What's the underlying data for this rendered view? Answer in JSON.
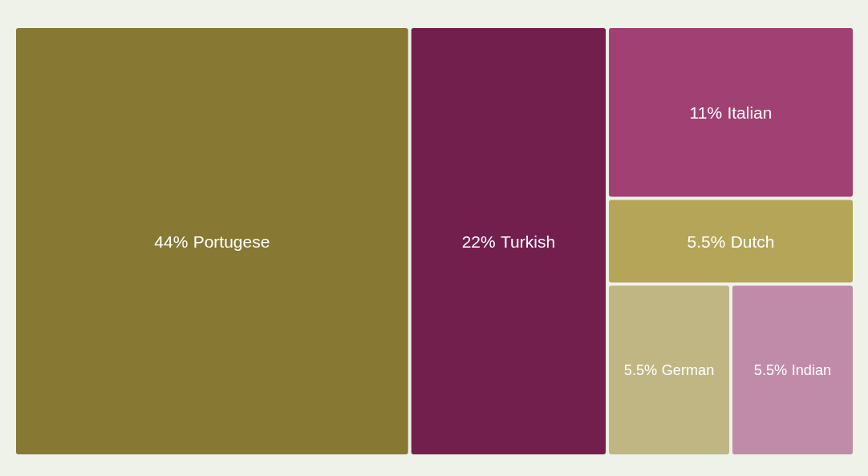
{
  "chart_data": {
    "type": "other",
    "categories": [
      "Portugese",
      "Turkish",
      "Italian",
      "Dutch",
      "German",
      "Indian"
    ],
    "values": [
      44,
      22,
      11,
      5.5,
      5.5,
      5.5
    ],
    "value_labels": [
      "44%",
      "22%",
      "11%",
      "5.5%",
      "5.5%",
      "5.5%"
    ],
    "colors": [
      "#877833",
      "#731f4e",
      "#a14073",
      "#b4a559",
      "#c0b683",
      "#c08ba9"
    ]
  }
}
